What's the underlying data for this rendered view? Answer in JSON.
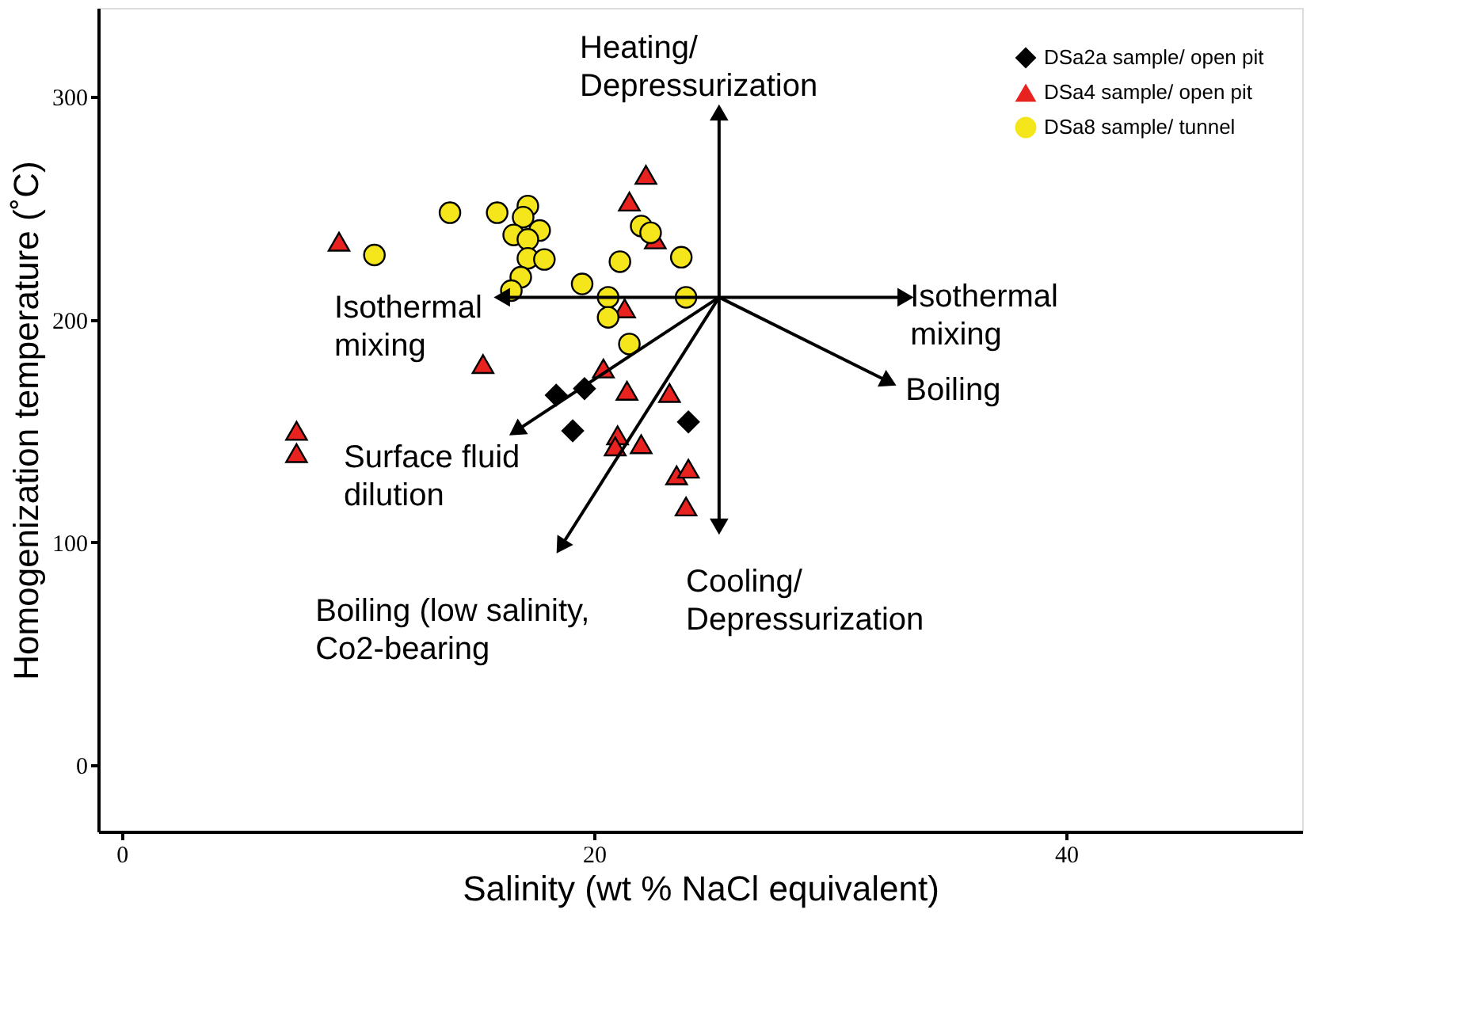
{
  "chart_data": {
    "type": "scatter",
    "xlabel": "Salinity (wt % NaCl equivalent)",
    "ylabel": "Homogenization temperature (˚C)",
    "xlim": [
      -1,
      50
    ],
    "ylim": [
      -30,
      340
    ],
    "xticks": [
      0,
      20,
      40
    ],
    "yticks": [
      0,
      100,
      200,
      300
    ],
    "grid": false,
    "legend": "top right",
    "series": [
      {
        "name": "DSa2a sample/ open pit",
        "color": "#000000",
        "marker": "diamond",
        "x": [
          18.4,
          19.6,
          19.1,
          24.0
        ],
        "values": [
          166,
          169,
          150,
          154
        ]
      },
      {
        "name": "DSa4 sample/ open pit",
        "color": "#e8231f",
        "marker": "triangle",
        "x": [
          22.2,
          21.5,
          22.6,
          9.2,
          21.3,
          15.3,
          20.4,
          21.4,
          23.2,
          7.4,
          7.4,
          21.0,
          22.0,
          20.9,
          23.5,
          24.0,
          23.9
        ],
        "values": [
          265,
          253,
          236,
          235,
          205,
          180,
          178,
          168,
          167,
          150,
          140,
          148,
          144,
          143,
          130,
          133,
          116
        ]
      },
      {
        "name": "DSa8 sample/ tunnel",
        "color": "#f5e51b",
        "marker": "circle",
        "x": [
          13.9,
          15.9,
          17.2,
          17.0,
          17.7,
          16.6,
          17.2,
          22.0,
          23.7,
          10.7,
          17.2,
          17.9,
          21.1,
          16.9,
          19.5,
          20.6,
          16.5,
          23.9,
          20.6,
          21.5,
          22.4
        ],
        "values": [
          248,
          248,
          251,
          246,
          240,
          238,
          236,
          242,
          228,
          229,
          227.5,
          227,
          226,
          219,
          216,
          210,
          213,
          210,
          201,
          189,
          239
        ]
      }
    ],
    "annotations": [
      "Heating/\nDepressurization",
      "Isothermal\nmixing",
      "Isothermal\nmixing",
      "Boiling",
      "Surface fluid\ndilution",
      "Boiling (low salinity,\nCo2-bearing",
      "Cooling/\nDepressurization"
    ]
  }
}
